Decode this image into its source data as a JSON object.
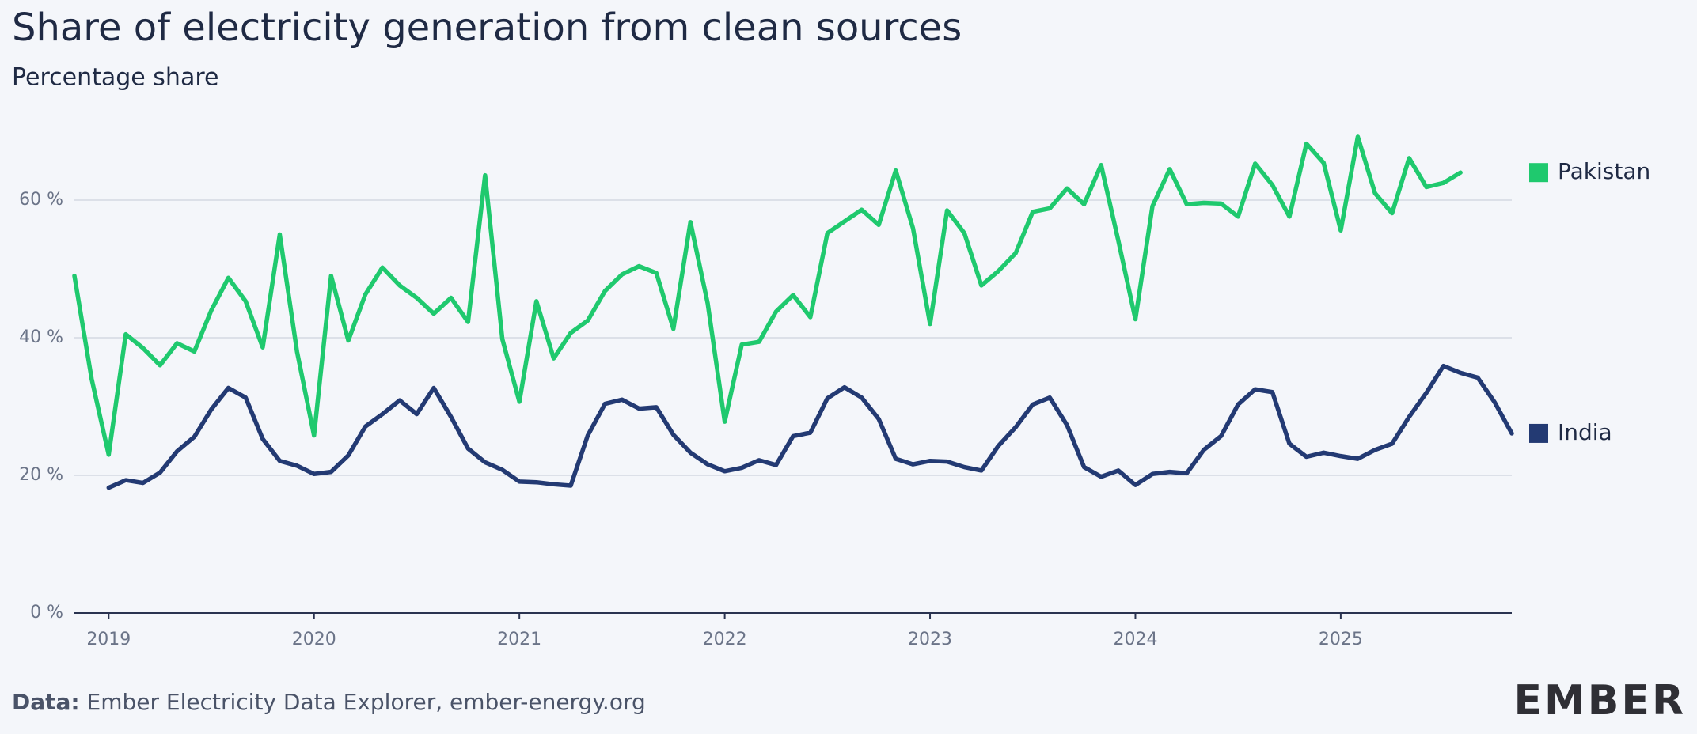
{
  "chart_data": {
    "type": "line",
    "title": "Share of electricity generation from clean sources",
    "subtitle": "Percentage share",
    "source_label": "Data:",
    "source": "Ember Electricity Data Explorer, ember-energy.org",
    "logo": "EMBER",
    "x": [
      2018.833,
      2018.917,
      2019,
      2019.083,
      2019.167,
      2019.25,
      2019.333,
      2019.417,
      2019.5,
      2019.583,
      2019.667,
      2019.75,
      2019.833,
      2019.917,
      2020,
      2020.083,
      2020.167,
      2020.25,
      2020.333,
      2020.417,
      2020.5,
      2020.583,
      2020.667,
      2020.75,
      2020.833,
      2020.917,
      2021,
      2021.083,
      2021.167,
      2021.25,
      2021.333,
      2021.417,
      2021.5,
      2021.583,
      2021.667,
      2021.75,
      2021.833,
      2021.917,
      2022,
      2022.083,
      2022.167,
      2022.25,
      2022.333,
      2022.417,
      2022.5,
      2022.583,
      2022.667,
      2022.75,
      2022.833,
      2022.917,
      2023,
      2023.083,
      2023.167,
      2023.25,
      2023.333,
      2023.417,
      2023.5,
      2023.583,
      2023.667,
      2023.75,
      2023.833,
      2023.917,
      2024,
      2024.083,
      2024.167,
      2024.25,
      2024.333,
      2024.417,
      2024.5,
      2024.583,
      2024.667,
      2024.75,
      2024.833,
      2024.917,
      2025,
      2025.083,
      2025.167,
      2025.25,
      2025.333,
      2025.417,
      2025.5,
      2025.583,
      2025.667,
      2025.75,
      2025.833
    ],
    "series": [
      {
        "name": "Pakistan",
        "color": "#1fc96e",
        "values": [
          49,
          34,
          23,
          40.5,
          38.5,
          36,
          39.2,
          38,
          44,
          48.7,
          45.3,
          38.6,
          55,
          38,
          25.8,
          49,
          39.6,
          46.3,
          50.2,
          47.6,
          45.8,
          43.5,
          45.8,
          42.3,
          63.6,
          39.8,
          30.7,
          45.3,
          37,
          40.7,
          42.5,
          46.8,
          49.2,
          50.4,
          49.4,
          41.3,
          56.8,
          45,
          27.8,
          39,
          39.4,
          43.8,
          46.2,
          43,
          55.2,
          56.9,
          58.6,
          56.4,
          64.3,
          55.9,
          42,
          58.5,
          55.2,
          47.6,
          49.7,
          52.3,
          58.3,
          58.8,
          61.7,
          59.4,
          65.1,
          54.1,
          42.7,
          59.1,
          64.5,
          59.4,
          59.6,
          59.5,
          57.6,
          65.3,
          62.2,
          57.6,
          68.2,
          65.4,
          55.6,
          69.2,
          61,
          58.1,
          66.1,
          61.9,
          62.5,
          64,
          null,
          null,
          null
        ]
      },
      {
        "name": "India",
        "color": "#233a73",
        "values": [
          null,
          null,
          18.2,
          19.3,
          18.9,
          20.4,
          23.5,
          25.6,
          29.6,
          32.7,
          31.3,
          25.3,
          22.1,
          21.4,
          20.2,
          20.5,
          22.9,
          27.1,
          28.9,
          30.9,
          28.9,
          32.7,
          28.5,
          23.9,
          21.9,
          20.8,
          19.1,
          19,
          18.7,
          18.5,
          25.8,
          30.4,
          31,
          29.7,
          29.9,
          25.9,
          23.3,
          21.6,
          20.6,
          21.1,
          22.2,
          21.5,
          25.7,
          26.2,
          31.2,
          32.8,
          31.3,
          28.2,
          22.4,
          21.6,
          22.1,
          22,
          21.2,
          20.7,
          24.3,
          27,
          30.3,
          31.3,
          27.3,
          21.2,
          19.8,
          20.7,
          18.6,
          20.2,
          20.5,
          20.3,
          23.7,
          25.7,
          30.3,
          32.5,
          32.1,
          24.6,
          22.7,
          23.3,
          22.8,
          22.4,
          23.7,
          24.6,
          28.5,
          32,
          35.9,
          34.9,
          34.2,
          30.6,
          26.1
        ]
      }
    ],
    "xlim": [
      2018.833,
      2025.833
    ],
    "xticks": [
      2019,
      2020,
      2021,
      2022,
      2023,
      2024,
      2025
    ],
    "ylim": [
      0,
      70
    ],
    "yticks": [
      {
        "value": 0,
        "label": "0 %"
      },
      {
        "value": 20,
        "label": "20 %"
      },
      {
        "value": 40,
        "label": "40 %"
      },
      {
        "value": 60,
        "label": "60 %"
      }
    ],
    "grid": true,
    "legend": "right"
  }
}
